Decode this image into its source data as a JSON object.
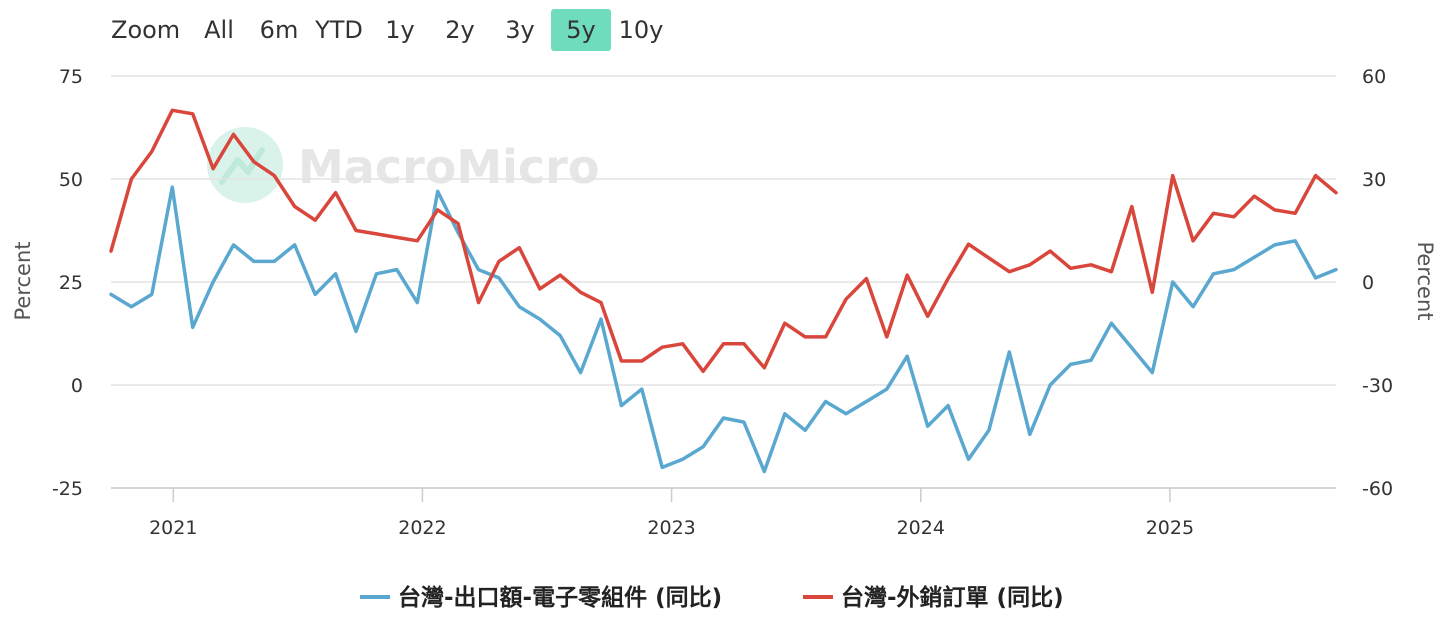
{
  "toolbar": {
    "zoom_label": "Zoom",
    "ranges": [
      "All",
      "6m",
      "YTD",
      "1y",
      "2y",
      "3y",
      "5y",
      "10y"
    ],
    "active_range": "5y",
    "active_color": "#6fddbd"
  },
  "watermark": "MacroMicro",
  "chart_data": {
    "type": "line",
    "title": "",
    "x_start": "2020-10",
    "x_end": "2025-09",
    "x_labels": [
      "2021",
      "2022",
      "2023",
      "2024",
      "2025"
    ],
    "y_left": {
      "label": "Percent",
      "range": [
        -25,
        75
      ],
      "ticks": [
        "75",
        "50",
        "25",
        "0",
        "-25"
      ]
    },
    "y_right": {
      "label": "Percent",
      "range": [
        -60,
        60
      ],
      "ticks": [
        "60",
        "30",
        "0",
        "-30",
        "-60"
      ]
    },
    "series": [
      {
        "name": "台灣-出口額-電子零組件 (同比)",
        "axis": "left",
        "color": "#5aa8d0",
        "values": [
          22,
          19,
          22,
          48,
          14,
          25,
          34,
          30,
          30,
          34,
          22,
          27,
          13,
          27,
          28,
          20,
          47,
          37,
          28,
          26,
          19,
          16,
          12,
          3,
          16,
          -5,
          -1,
          -20,
          -18,
          -15,
          -8,
          -9,
          -21,
          -7,
          -11,
          -4,
          -7,
          -4,
          -1,
          7,
          -10,
          -5,
          -18,
          -11,
          8,
          -12,
          0,
          5,
          6,
          15,
          9,
          3,
          25,
          19,
          27,
          28,
          31,
          34,
          35,
          26,
          28
        ]
      },
      {
        "name": "台灣-外銷訂單 (同比)",
        "axis": "right",
        "color": "#d9463b",
        "values": [
          9,
          30,
          38,
          50,
          49,
          33,
          43,
          35,
          31,
          22,
          18,
          26,
          15,
          14,
          13,
          12,
          21,
          17,
          -6,
          6,
          10,
          -2,
          2,
          -3,
          -6,
          -23,
          -23,
          -19,
          -18,
          -26,
          -18,
          -18,
          -25,
          -12,
          -16,
          -16,
          -5,
          1,
          -16,
          2,
          -10,
          1,
          11,
          7,
          3,
          5,
          9,
          4,
          5,
          3,
          22,
          -3,
          31,
          12,
          20,
          19,
          25,
          21,
          20,
          31,
          26
        ]
      }
    ]
  },
  "legend": [
    {
      "label": "台灣-出口額-電子零組件 (同比)",
      "color": "#5aa8d0"
    },
    {
      "label": "台灣-外銷訂單 (同比)",
      "color": "#d9463b"
    }
  ]
}
